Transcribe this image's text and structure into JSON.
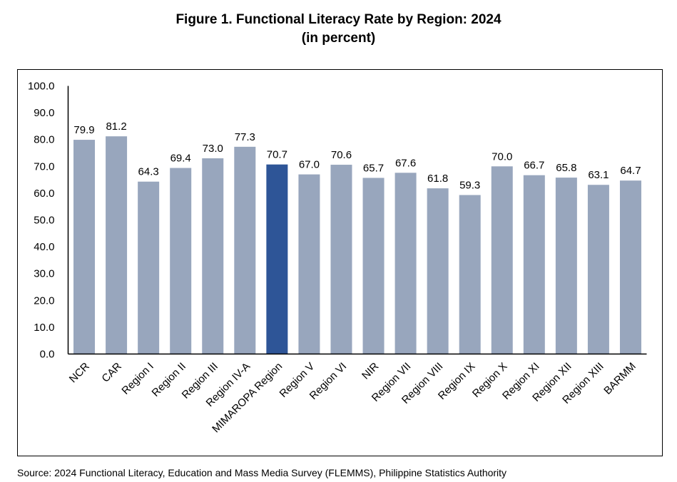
{
  "title": "Figure 1. Functional Literacy Rate by Region: 2024",
  "subtitle": "(in percent)",
  "source": "Source: 2024 Functional Literacy, Education and Mass Media Survey (FLEMMS), Philippine Statistics Authority",
  "colors": {
    "bar": "#98A6BD",
    "highlight": "#2E5597",
    "axis": "#000000"
  },
  "chart_data": {
    "type": "bar",
    "title": "Figure 1. Functional Literacy Rate by Region: 2024",
    "subtitle": "(in percent)",
    "xlabel": "",
    "ylabel": "",
    "ylim": [
      0,
      100
    ],
    "yticks": [
      "0.0",
      "10.0",
      "20.0",
      "30.0",
      "40.0",
      "50.0",
      "60.0",
      "70.0",
      "80.0",
      "90.0",
      "100.0"
    ],
    "grid": false,
    "categories": [
      "NCR",
      "CAR",
      "Region I",
      "Region II",
      "Region III",
      "Region IV-A",
      "MIMAROPA Region",
      "Region V",
      "Region VI",
      "NIR",
      "Region VII",
      "Region VIII",
      "Region IX",
      "Region X",
      "Region XI",
      "Region XII",
      "Region XIII",
      "BARMM"
    ],
    "values": [
      79.9,
      81.2,
      64.3,
      69.4,
      73.0,
      77.3,
      70.7,
      67.0,
      70.6,
      65.7,
      67.6,
      61.8,
      59.3,
      70.0,
      66.7,
      65.8,
      63.1,
      64.7
    ],
    "data_labels": [
      "79.9",
      "81.2",
      "64.3",
      "69.4",
      "73.0",
      "77.3",
      "70.7",
      "67.0",
      "70.6",
      "65.7",
      "67.6",
      "61.8",
      "59.3",
      "70.0",
      "66.7",
      "65.8",
      "63.1",
      "64.7"
    ],
    "highlight": "MIMAROPA Region"
  }
}
